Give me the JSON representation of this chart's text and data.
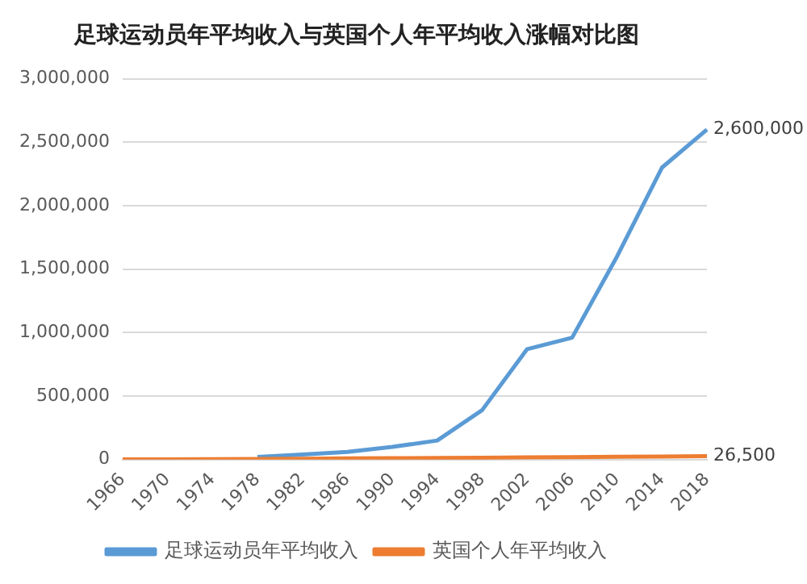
{
  "chart_data": {
    "type": "line",
    "title": "足球运动员年平均收入与英国个人年平均收入涨幅对比图",
    "categories": [
      "1966",
      "1970",
      "1974",
      "1978",
      "1982",
      "1986",
      "1990",
      "1994",
      "1998",
      "2002",
      "2006",
      "2010",
      "2014",
      "2018"
    ],
    "series": [
      {
        "name": "足球运动员年平均收入",
        "color": "#5b9bd5",
        "values": [
          null,
          null,
          null,
          20000,
          40000,
          60000,
          100000,
          150000,
          390000,
          870000,
          960000,
          1600000,
          2300000,
          2600000
        ],
        "value_labels": [
          null,
          null,
          null,
          null,
          null,
          null,
          null,
          null,
          null,
          null,
          null,
          null,
          null,
          "2,600,000"
        ]
      },
      {
        "name": "英国个人年平均收入",
        "color": "#ed7d31",
        "values": [
          2000,
          2000,
          3000,
          5000,
          7000,
          9000,
          11000,
          13000,
          15000,
          17000,
          19000,
          22000,
          24000,
          26500
        ],
        "value_labels": [
          null,
          null,
          null,
          null,
          null,
          null,
          null,
          null,
          null,
          null,
          null,
          null,
          null,
          "26,500"
        ]
      }
    ],
    "ylim": [
      0,
      3000000
    ],
    "yticks": [
      {
        "value": 0,
        "label": "0"
      },
      {
        "value": 500000,
        "label": "500,000"
      },
      {
        "value": 1000000,
        "label": "1,000,000"
      },
      {
        "value": 1500000,
        "label": "1,500,000"
      },
      {
        "value": 2000000,
        "label": "2,000,000"
      },
      {
        "value": 2500000,
        "label": "2,500,000"
      },
      {
        "value": 3000000,
        "label": "3,000,000"
      }
    ],
    "grid": "y",
    "legend": "bottom",
    "marker": "none",
    "line_style": "solid"
  }
}
